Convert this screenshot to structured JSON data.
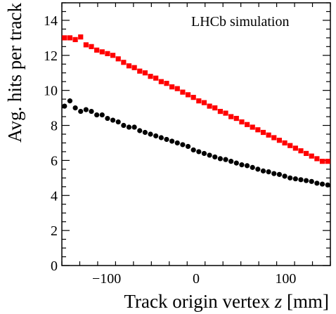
{
  "chart_data": {
    "type": "scatter",
    "annotation": "LHCb simulation",
    "xlabel": "Track origin vertex ",
    "xlabel_var": "z",
    "xlabel_unit": " [mm]",
    "ylabel": "Avg. hits per track",
    "xlim": [
      -150,
      150
    ],
    "ylim": [
      0,
      15
    ],
    "xticks": [
      -100,
      0,
      100
    ],
    "yticks": [
      0,
      2,
      4,
      6,
      8,
      10,
      12,
      14
    ],
    "grid": false,
    "series": [
      {
        "marker": "square",
        "color": "#ff0000",
        "x": [
          -147,
          -141,
          -135,
          -129,
          -123,
          -117,
          -111,
          -105,
          -99,
          -93,
          -87,
          -81,
          -75,
          -69,
          -63,
          -57,
          -51,
          -45,
          -39,
          -33,
          -27,
          -21,
          -15,
          -9,
          -3,
          3,
          9,
          15,
          21,
          27,
          33,
          39,
          45,
          51,
          57,
          63,
          69,
          75,
          81,
          87,
          93,
          99,
          105,
          111,
          117,
          123,
          129,
          135,
          141,
          147
        ],
        "y": [
          13.0,
          13.0,
          12.9,
          13.05,
          12.6,
          12.5,
          12.3,
          12.2,
          12.1,
          12.0,
          11.8,
          11.6,
          11.4,
          11.3,
          11.1,
          11.0,
          10.8,
          10.7,
          10.5,
          10.4,
          10.2,
          10.1,
          9.9,
          9.75,
          9.6,
          9.4,
          9.3,
          9.1,
          9.0,
          8.8,
          8.7,
          8.5,
          8.4,
          8.2,
          8.05,
          7.9,
          7.75,
          7.6,
          7.45,
          7.3,
          7.15,
          7.0,
          6.85,
          6.7,
          6.55,
          6.4,
          6.25,
          6.1,
          5.95,
          5.95
        ]
      },
      {
        "marker": "circle",
        "color": "#000000",
        "x": [
          -147,
          -141,
          -135,
          -129,
          -123,
          -117,
          -111,
          -105,
          -99,
          -93,
          -87,
          -81,
          -75,
          -69,
          -63,
          -57,
          -51,
          -45,
          -39,
          -33,
          -27,
          -21,
          -15,
          -9,
          -3,
          3,
          9,
          15,
          21,
          27,
          33,
          39,
          45,
          51,
          57,
          63,
          69,
          75,
          81,
          87,
          93,
          99,
          105,
          111,
          117,
          123,
          129,
          135,
          141,
          147
        ],
        "y": [
          9.1,
          9.4,
          9.0,
          8.8,
          8.9,
          8.8,
          8.6,
          8.6,
          8.4,
          8.3,
          8.2,
          8.0,
          7.9,
          7.9,
          7.7,
          7.6,
          7.5,
          7.4,
          7.3,
          7.2,
          7.1,
          7.0,
          6.9,
          6.8,
          6.6,
          6.5,
          6.4,
          6.3,
          6.2,
          6.1,
          6.05,
          5.95,
          5.85,
          5.75,
          5.7,
          5.6,
          5.5,
          5.4,
          5.35,
          5.25,
          5.2,
          5.1,
          5.0,
          4.95,
          4.9,
          4.85,
          4.8,
          4.7,
          4.65,
          4.6
        ]
      }
    ]
  }
}
